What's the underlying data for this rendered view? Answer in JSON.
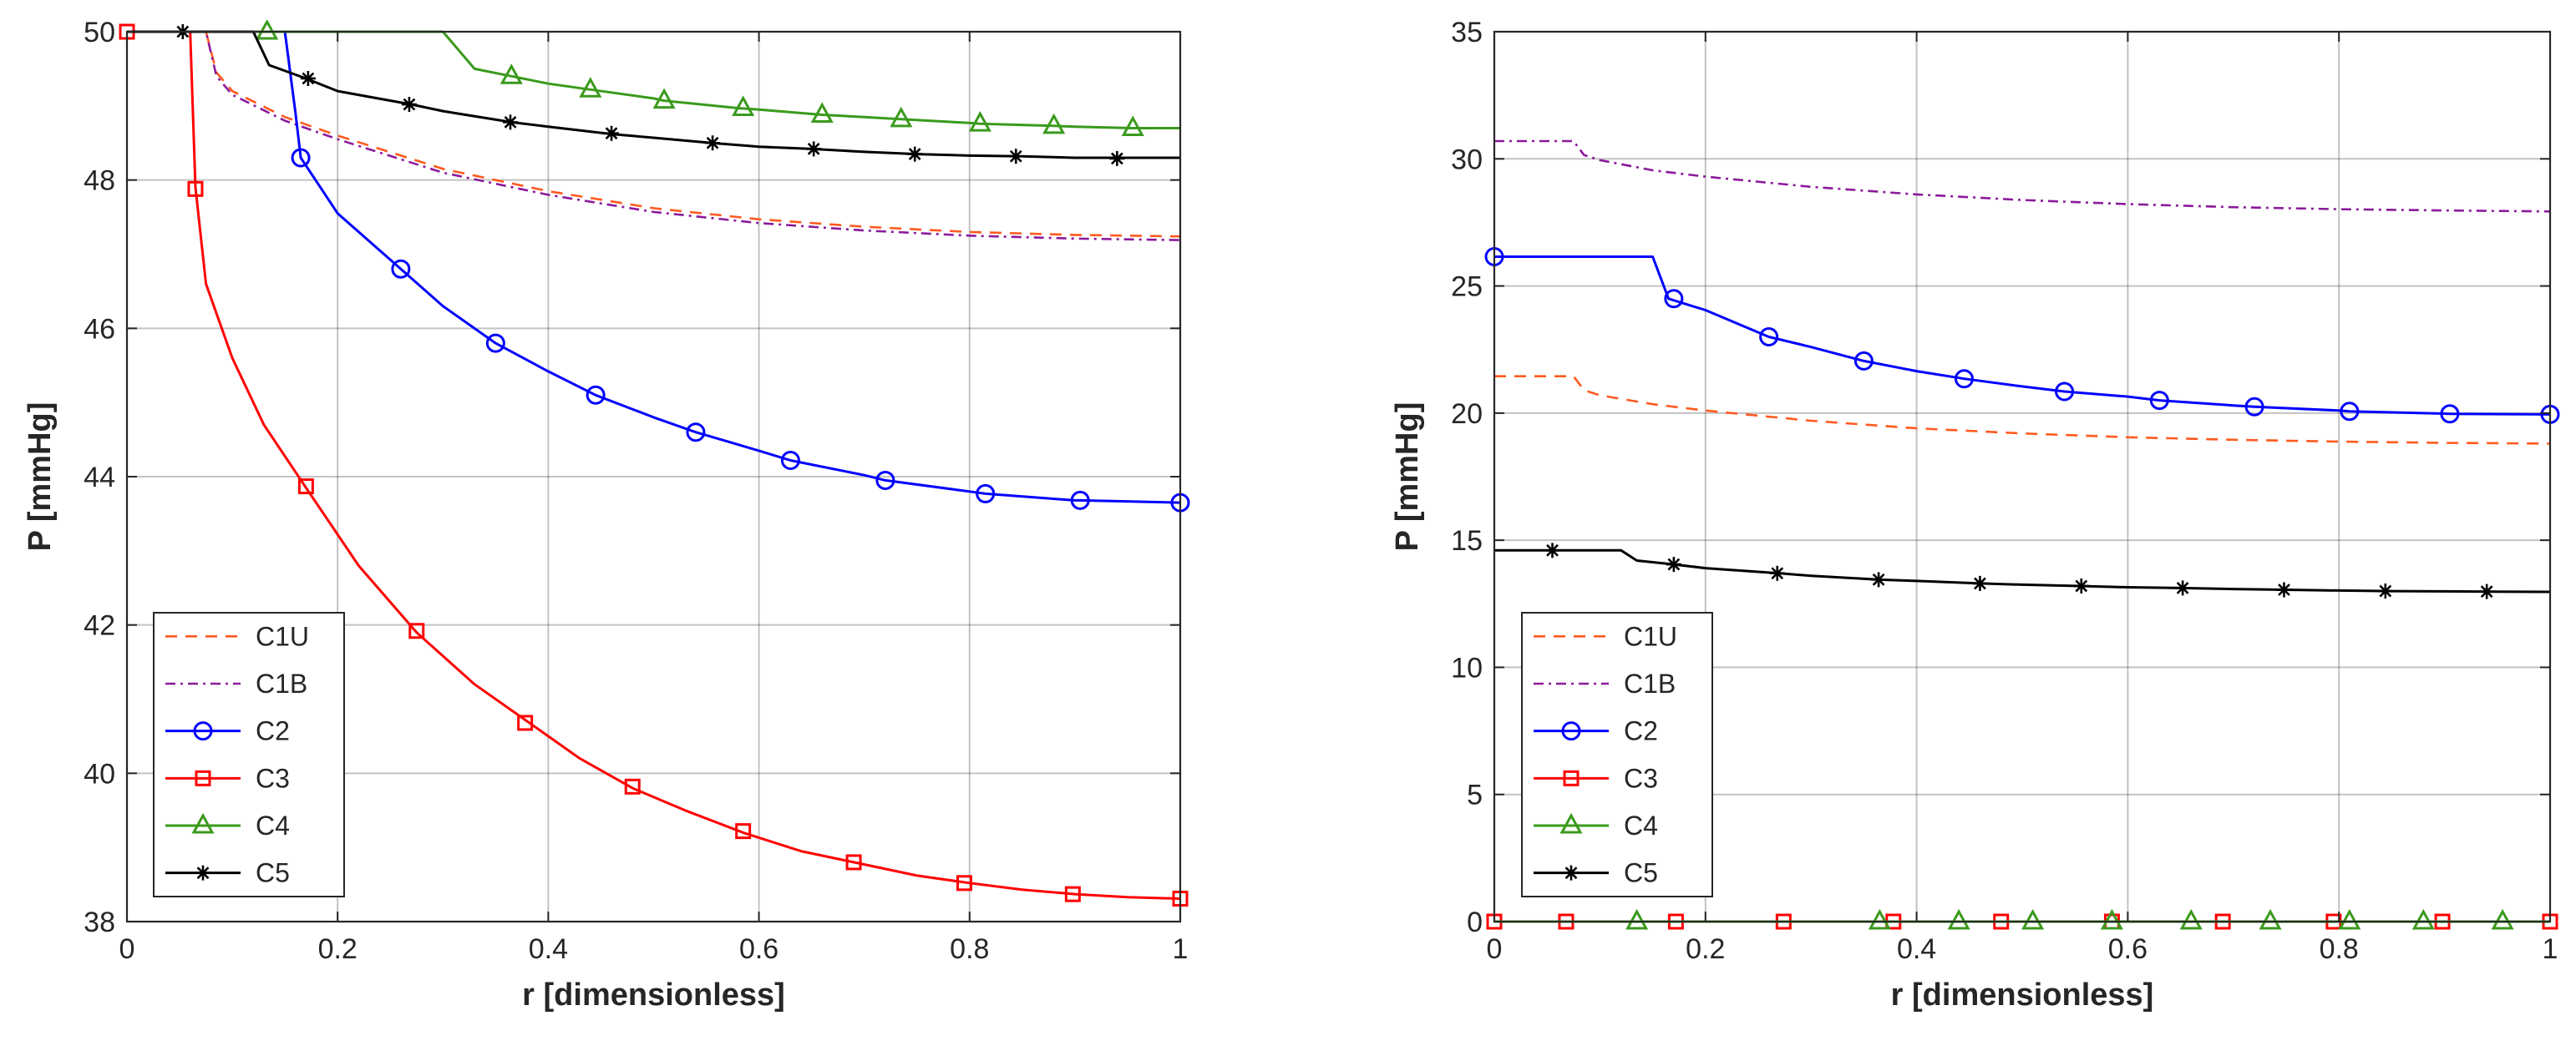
{
  "chart_data": [
    {
      "type": "line",
      "title": "",
      "xlabel": "r [dimensionless]",
      "ylabel": "P [mmHg]",
      "xlim": [
        0,
        1
      ],
      "ylim": [
        38,
        50
      ],
      "xticks": [
        0,
        0.2,
        0.4,
        0.6,
        0.8,
        1
      ],
      "xtick_labels": [
        "0",
        "0.2",
        "0.4",
        "0.6",
        "0.8",
        "1"
      ],
      "yticks": [
        38,
        40,
        42,
        44,
        46,
        48,
        50
      ],
      "ytick_labels": [
        "38",
        "40",
        "42",
        "44",
        "46",
        "48",
        "50"
      ],
      "grid": true,
      "legend_position": "bottom-left",
      "series": [
        {
          "name": "C1U",
          "color": "#ff5a1f",
          "style": "dashed",
          "marker": "none",
          "x": [
            0,
            0.075,
            0.085,
            0.1,
            0.15,
            0.2,
            0.3,
            0.4,
            0.5,
            0.6,
            0.7,
            0.8,
            0.9,
            1.0
          ],
          "y": [
            50,
            50,
            49.45,
            49.2,
            48.85,
            48.6,
            48.15,
            47.85,
            47.62,
            47.47,
            47.37,
            47.3,
            47.26,
            47.24
          ]
        },
        {
          "name": "C1B",
          "color": "#8b1a9b",
          "style": "dashdot",
          "marker": "none",
          "x": [
            0,
            0.075,
            0.085,
            0.1,
            0.15,
            0.2,
            0.3,
            0.4,
            0.5,
            0.6,
            0.7,
            0.8,
            0.9,
            1.0
          ],
          "y": [
            50,
            50,
            49.4,
            49.15,
            48.8,
            48.55,
            48.1,
            47.8,
            47.57,
            47.42,
            47.32,
            47.25,
            47.21,
            47.19
          ]
        },
        {
          "name": "C2",
          "color": "#0000ff",
          "style": "solid",
          "marker": "circle",
          "x": [
            0,
            0.15,
            0.16,
            0.165,
            0.2,
            0.26,
            0.3,
            0.35,
            0.4,
            0.445,
            0.5,
            0.54,
            0.6,
            0.63,
            0.7,
            0.72,
            0.8,
            0.815,
            0.9,
            0.905,
            1.0
          ],
          "y": [
            50,
            50,
            48.9,
            48.3,
            47.55,
            46.8,
            46.3,
            45.8,
            45.42,
            45.1,
            44.8,
            44.6,
            44.35,
            44.22,
            44.02,
            43.95,
            43.8,
            43.77,
            43.68,
            43.68,
            43.65
          ],
          "marker_x": [
            0.165,
            0.26,
            0.35,
            0.445,
            0.54,
            0.63,
            0.72,
            0.815,
            0.905,
            1.0
          ],
          "marker_y": [
            48.3,
            46.8,
            45.8,
            45.1,
            44.6,
            44.22,
            43.95,
            43.77,
            43.68,
            43.65
          ]
        },
        {
          "name": "C3",
          "color": "#ff0000",
          "style": "solid",
          "marker": "square",
          "x": [
            0,
            0.06,
            0.065,
            0.075,
            0.1,
            0.13,
            0.17,
            0.22,
            0.275,
            0.33,
            0.38,
            0.43,
            0.48,
            0.53,
            0.585,
            0.64,
            0.69,
            0.75,
            0.8,
            0.85,
            0.9,
            0.95,
            1.0
          ],
          "y": [
            50,
            50,
            47.9,
            46.6,
            45.6,
            44.7,
            43.85,
            42.8,
            41.9,
            41.2,
            40.7,
            40.2,
            39.8,
            39.5,
            39.2,
            38.95,
            38.8,
            38.62,
            38.52,
            38.43,
            38.37,
            38.33,
            38.31
          ],
          "marker_x": [
            0,
            0.065,
            0.17,
            0.275,
            0.378,
            0.48,
            0.585,
            0.69,
            0.795,
            0.898,
            1.0
          ],
          "marker_y": [
            50,
            47.88,
            43.87,
            41.92,
            40.68,
            39.82,
            39.22,
            38.8,
            38.52,
            38.37,
            38.31
          ]
        },
        {
          "name": "C4",
          "color": "#3a9a1c",
          "style": "solid",
          "marker": "triangle",
          "x": [
            0,
            0.13,
            0.3,
            0.33,
            0.365,
            0.4,
            0.44,
            0.5,
            0.51,
            0.58,
            0.6,
            0.66,
            0.7,
            0.735,
            0.8,
            0.81,
            0.88,
            0.9,
            0.955,
            1.0
          ],
          "y": [
            50,
            50,
            50,
            49.5,
            49.4,
            49.3,
            49.22,
            49.1,
            49.07,
            48.97,
            48.95,
            48.88,
            48.85,
            48.82,
            48.77,
            48.76,
            48.73,
            48.72,
            48.7,
            48.7
          ],
          "marker_x": [
            0.133,
            0.365,
            0.44,
            0.51,
            0.585,
            0.66,
            0.735,
            0.81,
            0.88,
            0.955
          ],
          "marker_y": [
            50,
            49.4,
            49.22,
            49.07,
            48.97,
            48.88,
            48.82,
            48.76,
            48.73,
            48.7
          ]
        },
        {
          "name": "C5",
          "color": "#000000",
          "style": "solid",
          "marker": "star",
          "x": [
            0,
            0.12,
            0.135,
            0.17,
            0.2,
            0.27,
            0.3,
            0.365,
            0.4,
            0.46,
            0.5,
            0.555,
            0.6,
            0.65,
            0.7,
            0.75,
            0.8,
            0.85,
            0.9,
            0.945,
            1.0
          ],
          "y": [
            50,
            50,
            49.55,
            49.37,
            49.2,
            49.02,
            48.93,
            48.78,
            48.72,
            48.62,
            48.57,
            48.5,
            48.45,
            48.42,
            48.38,
            48.35,
            48.33,
            48.32,
            48.3,
            48.3,
            48.3
          ],
          "marker_x": [
            0.053,
            0.172,
            0.268,
            0.364,
            0.46,
            0.556,
            0.652,
            0.748,
            0.844,
            0.94
          ],
          "marker_y": [
            50,
            49.37,
            49.02,
            48.78,
            48.63,
            48.5,
            48.42,
            48.35,
            48.32,
            48.29
          ]
        }
      ]
    },
    {
      "type": "line",
      "title": "",
      "xlabel": "r [dimensionless]",
      "ylabel": "P [mmHg]",
      "xlim": [
        0,
        1
      ],
      "ylim": [
        0,
        35
      ],
      "xticks": [
        0,
        0.2,
        0.4,
        0.6,
        0.8,
        1
      ],
      "xtick_labels": [
        "0",
        "0.2",
        "0.4",
        "0.6",
        "0.8",
        "1"
      ],
      "yticks": [
        0,
        5,
        10,
        15,
        20,
        25,
        30,
        35
      ],
      "ytick_labels": [
        "0",
        "5",
        "10",
        "15",
        "20",
        "25",
        "30",
        "35"
      ],
      "grid": true,
      "legend_position": "bottom-left",
      "series": [
        {
          "name": "C1U",
          "color": "#ff5a1f",
          "style": "dashed",
          "marker": "none",
          "x": [
            0,
            0.075,
            0.085,
            0.1,
            0.15,
            0.2,
            0.3,
            0.4,
            0.5,
            0.6,
            0.7,
            0.8,
            0.9,
            1.0
          ],
          "y": [
            21.45,
            21.45,
            20.9,
            20.7,
            20.35,
            20.1,
            19.7,
            19.4,
            19.2,
            19.05,
            18.95,
            18.88,
            18.83,
            18.8
          ]
        },
        {
          "name": "C1B",
          "color": "#8b1a9b",
          "style": "dashdot",
          "marker": "none",
          "x": [
            0,
            0.075,
            0.085,
            0.1,
            0.15,
            0.2,
            0.3,
            0.4,
            0.5,
            0.6,
            0.7,
            0.8,
            0.9,
            1.0
          ],
          "y": [
            30.7,
            30.7,
            30.15,
            29.95,
            29.55,
            29.3,
            28.9,
            28.6,
            28.38,
            28.22,
            28.1,
            28.02,
            27.97,
            27.93
          ]
        },
        {
          "name": "C2",
          "color": "#0000ff",
          "style": "solid",
          "marker": "circle",
          "x": [
            0,
            0.15,
            0.165,
            0.2,
            0.26,
            0.3,
            0.35,
            0.4,
            0.445,
            0.5,
            0.54,
            0.6,
            0.63,
            0.7,
            0.72,
            0.8,
            0.81,
            0.9,
            0.905,
            1.0
          ],
          "y": [
            26.15,
            26.15,
            24.5,
            24.05,
            23.0,
            22.6,
            22.05,
            21.65,
            21.35,
            21.05,
            20.85,
            20.65,
            20.5,
            20.3,
            20.25,
            20.1,
            20.07,
            19.98,
            19.97,
            19.95
          ],
          "marker_x": [
            0,
            0.17,
            0.26,
            0.35,
            0.445,
            0.54,
            0.63,
            0.72,
            0.81,
            0.905,
            1.0
          ],
          "marker_y": [
            26.15,
            24.5,
            23.0,
            22.05,
            21.35,
            20.85,
            20.5,
            20.25,
            20.07,
            19.97,
            19.95
          ]
        },
        {
          "name": "C3",
          "color": "#ff0000",
          "style": "solid",
          "marker": "square",
          "x": [
            0,
            1
          ],
          "y": [
            0,
            0
          ],
          "marker_x": [
            0,
            0.068,
            0.172,
            0.274,
            0.378,
            0.48,
            0.585,
            0.69,
            0.795,
            0.898,
            1.0
          ],
          "marker_y": [
            0,
            0,
            0,
            0,
            0,
            0,
            0,
            0,
            0,
            0,
            0
          ]
        },
        {
          "name": "C4",
          "color": "#3a9a1c",
          "style": "solid",
          "marker": "triangle",
          "x": [
            0,
            1
          ],
          "y": [
            0,
            0
          ],
          "marker_x": [
            0.135,
            0.365,
            0.44,
            0.51,
            0.585,
            0.66,
            0.735,
            0.81,
            0.88,
            0.955
          ],
          "marker_y": [
            0,
            0,
            0,
            0,
            0,
            0,
            0,
            0,
            0,
            0
          ]
        },
        {
          "name": "C5",
          "color": "#000000",
          "style": "solid",
          "marker": "star",
          "x": [
            0,
            0.12,
            0.135,
            0.17,
            0.2,
            0.27,
            0.3,
            0.365,
            0.4,
            0.46,
            0.5,
            0.555,
            0.6,
            0.65,
            0.7,
            0.75,
            0.8,
            0.85,
            0.9,
            0.945,
            1.0
          ],
          "y": [
            14.6,
            14.6,
            14.2,
            14.05,
            13.9,
            13.7,
            13.6,
            13.45,
            13.4,
            13.3,
            13.25,
            13.2,
            13.15,
            13.12,
            13.08,
            13.05,
            13.02,
            13.0,
            12.99,
            12.98,
            12.97
          ],
          "marker_x": [
            0.055,
            0.17,
            0.268,
            0.364,
            0.46,
            0.556,
            0.652,
            0.748,
            0.844,
            0.94
          ],
          "marker_y": [
            14.6,
            14.05,
            13.7,
            13.45,
            13.3,
            13.2,
            13.12,
            13.05,
            13.0,
            12.98
          ]
        }
      ]
    }
  ]
}
